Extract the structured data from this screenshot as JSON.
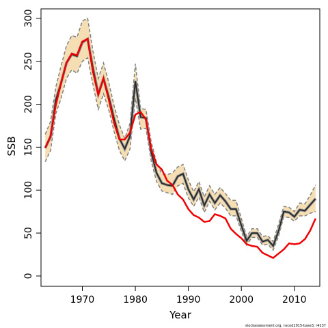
{
  "chart_data": {
    "type": "line",
    "title": "",
    "xlabel": "Year",
    "ylabel": "SSB",
    "xlim": [
      1962.2,
      2014.8
    ],
    "ylim": [
      -12,
      311
    ],
    "xticks": [
      1970,
      1980,
      1990,
      2000,
      2010
    ],
    "yticks": [
      0,
      50,
      100,
      150,
      200,
      250,
      300
    ],
    "grid": false,
    "legend": "none",
    "footnote": "stockassessment.org, nscod2015-base3, r4237",
    "colors": {
      "band_fill": "#f5deb3",
      "bounds": "#808080",
      "estimate": "#2b2b2b",
      "comparison": "#ee0000"
    },
    "x": [
      1963,
      1964,
      1965,
      1966,
      1967,
      1968,
      1969,
      1970,
      1971,
      1972,
      1973,
      1974,
      1975,
      1976,
      1977,
      1978,
      1979,
      1980,
      1981,
      1982,
      1983,
      1984,
      1985,
      1986,
      1987,
      1988,
      1989,
      1990,
      1991,
      1992,
      1993,
      1994,
      1995,
      1996,
      1997,
      1998,
      1999,
      2000,
      2001,
      2002,
      2003,
      2004,
      2005,
      2006,
      2007,
      2008,
      2009,
      2010,
      2011,
      2012,
      2013,
      2014
    ],
    "series": [
      {
        "role": "estimate",
        "values": [
          149,
          162,
          205,
          225,
          248,
          258,
          256,
          272,
          276,
          242,
          212,
          230,
          208,
          183,
          160,
          148,
          163,
          227,
          185,
          184,
          144,
          120,
          108,
          106,
          105,
          116,
          119,
          101,
          89,
          101,
          82,
          95,
          85,
          94,
          87,
          78,
          78,
          59,
          41,
          50,
          50,
          40,
          42,
          35,
          52,
          75,
          74,
          69,
          77,
          76,
          83,
          90
        ]
      },
      {
        "role": "upper-bound",
        "values": [
          165,
          180,
          220,
          245,
          268,
          280,
          278,
          297,
          300,
          262,
          230,
          248,
          225,
          198,
          176,
          160,
          178,
          247,
          195,
          194,
          156,
          132,
          119,
          118,
          120,
          127,
          130,
          112,
          98,
          110,
          92,
          105,
          95,
          103,
          96,
          88,
          88,
          67,
          46,
          55,
          55,
          46,
          47,
          40,
          60,
          81,
          80,
          75,
          85,
          84,
          94,
          106
        ]
      },
      {
        "role": "lower-bound",
        "values": [
          133,
          146,
          189,
          207,
          230,
          240,
          236,
          250,
          254,
          223,
          194,
          212,
          193,
          168,
          146,
          134,
          148,
          207,
          171,
          172,
          134,
          110,
          99,
          97,
          95,
          105,
          108,
          91,
          81,
          92,
          74,
          87,
          77,
          85,
          79,
          70,
          70,
          52,
          36,
          45,
          45,
          36,
          37,
          30,
          46,
          69,
          68,
          64,
          70,
          70,
          73,
          75
        ]
      },
      {
        "role": "comparison",
        "values": [
          149,
          163,
          199,
          225,
          248,
          259,
          257,
          273,
          276,
          238,
          211,
          230,
          205,
          178,
          159,
          159,
          167,
          188,
          191,
          182,
          148,
          130,
          124,
          111,
          106,
          95,
          89,
          78,
          71,
          68,
          63,
          64,
          72,
          70,
          67,
          55,
          49,
          44,
          37,
          35,
          34,
          27,
          24,
          21,
          26,
          31,
          38,
          37,
          38,
          43,
          53,
          67
        ]
      }
    ]
  }
}
